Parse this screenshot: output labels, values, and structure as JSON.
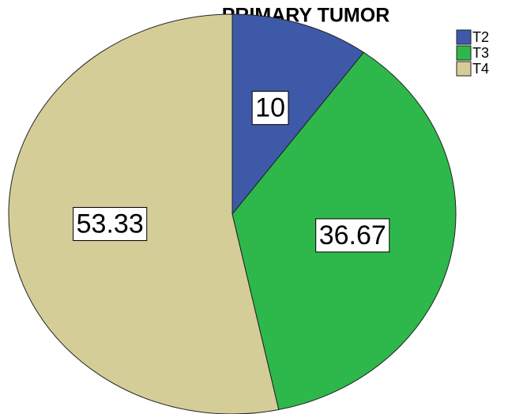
{
  "chart_data": {
    "type": "pie",
    "title": "PRIMARY TUMOR",
    "categories": [
      "T2",
      "T3",
      "T4"
    ],
    "values": [
      10,
      36.67,
      53.33
    ],
    "colors": [
      "#3f59a9",
      "#2eb84b",
      "#d5cd98"
    ]
  }
}
